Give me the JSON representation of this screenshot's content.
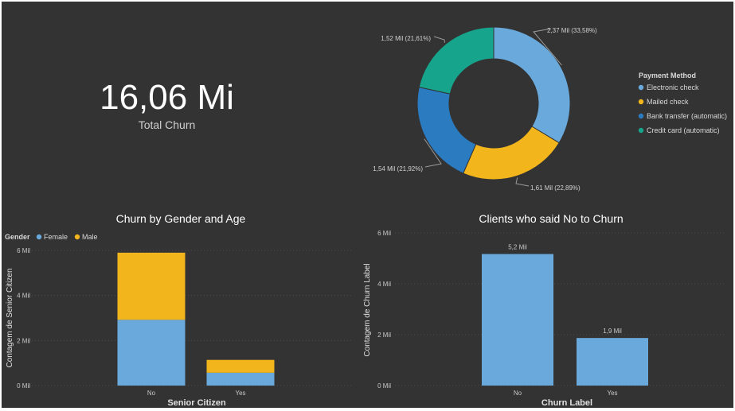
{
  "kpi": {
    "value": "16,06 Mi",
    "label": "Total Churn"
  },
  "chart_data": [
    {
      "type": "pie",
      "style": "donut",
      "title": "",
      "legend": {
        "title": "Payment Method",
        "position": "right"
      },
      "slices": [
        {
          "name": "Electronic check",
          "value": 2.37,
          "label": "2,37 Mil (33,58%)",
          "color": "#6aa9dc"
        },
        {
          "name": "Mailed check",
          "value": 1.61,
          "label": "1,61 Mil (22,89%)",
          "color": "#f2b51c"
        },
        {
          "name": "Bank transfer (automatic)",
          "value": 1.54,
          "label": "1,54 Mil (21,92%)",
          "color": "#2b7bc1"
        },
        {
          "name": "Credit card (automatic)",
          "value": 1.52,
          "label": "1,52 Mil (21,61%)",
          "color": "#16a58c"
        }
      ]
    },
    {
      "type": "bar",
      "stacked": true,
      "title": "Churn by Gender and Age",
      "xlabel": "Senior Citizen",
      "ylabel": "Contagem de Senior Citizen",
      "categories": [
        "No",
        "Yes"
      ],
      "legend": {
        "title": "Gender",
        "position": "top-left"
      },
      "series": [
        {
          "name": "Female",
          "values": [
            2.92,
            0.57
          ],
          "color": "#6aa9dc"
        },
        {
          "name": "Male",
          "values": [
            2.98,
            0.57
          ],
          "color": "#f2b51c"
        }
      ],
      "ylim": [
        0,
        6
      ],
      "yticks": [
        0,
        2,
        4,
        6
      ],
      "ytick_labels": [
        "0 Mil",
        "2 Mil",
        "4 Mil",
        "6 Mil"
      ],
      "grid": true
    },
    {
      "type": "bar",
      "title": "Clients who said No to Churn",
      "xlabel": "Churn Label",
      "ylabel": "Contagem de Churn Label",
      "categories": [
        "No",
        "Yes"
      ],
      "values": [
        5.17,
        1.87
      ],
      "data_labels": [
        "5,2 Mil",
        "1,9 Mil"
      ],
      "color": "#6aa9dc",
      "ylim": [
        0,
        6
      ],
      "yticks": [
        0,
        2,
        4,
        6
      ],
      "ytick_labels": [
        "0 Mil",
        "2 Mil",
        "4 Mil",
        "6 Mil"
      ],
      "grid": true
    }
  ]
}
